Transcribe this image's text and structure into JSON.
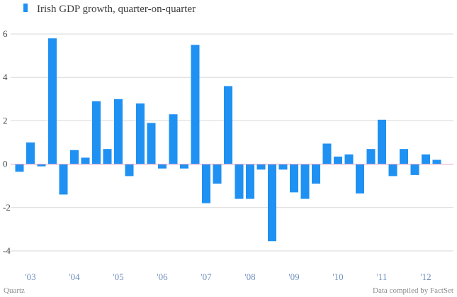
{
  "chart_data": {
    "type": "bar",
    "title": "",
    "legend": {
      "label": "Irish GDP growth, quarter-on-quarter",
      "placement": "top-left"
    },
    "colors": {
      "bar": "#1f91f3",
      "grid": "#d8d8d8",
      "zero_line": "#e2a1c4",
      "year_ticks": "#6f8fbd"
    },
    "y_ticks": [
      "6",
      "4",
      "2",
      "0",
      "-2",
      "-4"
    ],
    "y_tick_values": [
      6,
      4,
      2,
      0,
      -2,
      -4
    ],
    "ylim": [
      -4.6,
      6.6
    ],
    "x_tick_labels": [
      "'03",
      "'04",
      "'05",
      "'06",
      "'07",
      "'08",
      "'09",
      "'10",
      "'11",
      "'12"
    ],
    "x_tick_quarter_index": [
      1,
      5,
      9,
      13,
      17,
      21,
      25,
      29,
      33,
      37
    ],
    "xlabel": "",
    "ylabel": "",
    "grid": true,
    "values": [
      -0.35,
      1.0,
      -0.1,
      5.8,
      -1.4,
      0.65,
      0.3,
      2.9,
      0.7,
      3.0,
      -0.55,
      2.8,
      1.9,
      -0.2,
      2.3,
      -0.2,
      5.5,
      -1.8,
      -0.9,
      3.6,
      -1.6,
      -1.6,
      -0.25,
      -3.55,
      -0.25,
      -1.3,
      -1.6,
      -0.9,
      0.95,
      0.35,
      0.45,
      -1.35,
      0.7,
      2.05,
      -0.55,
      0.7,
      -0.5,
      0.45,
      0.2
    ]
  },
  "footer": {
    "source_left": "Quartz",
    "source_right": "Data compiled by FactSet"
  }
}
